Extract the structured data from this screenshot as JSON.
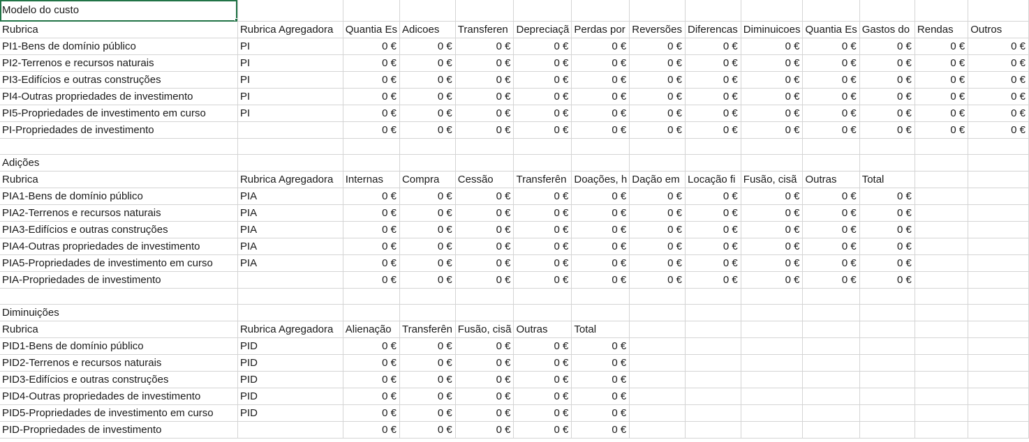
{
  "sheet": {
    "selected_cell_text": "Modelo do custo",
    "sections": [
      {
        "title": "Modelo do custo",
        "headers": [
          "Rubrica",
          "Rubrica Agregadora",
          "Quantia Es",
          "Adicoes",
          "Transferen",
          "Depreciaçã",
          "Perdas por",
          "Reversões",
          "Diferencas",
          "Diminuicoes",
          "Quantia Es",
          "Gastos do",
          "Rendas",
          "Outros"
        ],
        "rows": [
          [
            "PI1-Bens de domínio público",
            "PI",
            "0 €",
            "0 €",
            "0 €",
            "0 €",
            "0 €",
            "0 €",
            "0 €",
            "0 €",
            "0 €",
            "0 €",
            "0 €",
            "0 €"
          ],
          [
            "PI2-Terrenos e recursos naturais",
            "PI",
            "0 €",
            "0 €",
            "0 €",
            "0 €",
            "0 €",
            "0 €",
            "0 €",
            "0 €",
            "0 €",
            "0 €",
            "0 €",
            "0 €"
          ],
          [
            "PI3-Edifícios e outras construções",
            "PI",
            "0 €",
            "0 €",
            "0 €",
            "0 €",
            "0 €",
            "0 €",
            "0 €",
            "0 €",
            "0 €",
            "0 €",
            "0 €",
            "0 €"
          ],
          [
            "PI4-Outras propriedades de investimento",
            "PI",
            "0 €",
            "0 €",
            "0 €",
            "0 €",
            "0 €",
            "0 €",
            "0 €",
            "0 €",
            "0 €",
            "0 €",
            "0 €",
            "0 €"
          ],
          [
            "PI5-Propriedades de investimento em curso",
            "PI",
            "0 €",
            "0 €",
            "0 €",
            "0 €",
            "0 €",
            "0 €",
            "0 €",
            "0 €",
            "0 €",
            "0 €",
            "0 €",
            "0 €"
          ],
          [
            "PI-Propriedades de investimento",
            "",
            "0 €",
            "0 €",
            "0 €",
            "0 €",
            "0 €",
            "0 €",
            "0 €",
            "0 €",
            "0 €",
            "0 €",
            "0 €",
            "0 €"
          ]
        ]
      },
      {
        "title": "Adições",
        "headers": [
          "Rubrica",
          "Rubrica Agregadora",
          "Internas",
          "Compra",
          "Cessão",
          "Transferên",
          "Doações, h",
          "Dação em",
          "Locação fi",
          "Fusão, cisã",
          "Outras",
          "Total"
        ],
        "rows": [
          [
            "PIA1-Bens de domínio público",
            "PIA",
            "0 €",
            "0 €",
            "0 €",
            "0 €",
            "0 €",
            "0 €",
            "0 €",
            "0 €",
            "0 €",
            "0 €"
          ],
          [
            "PIA2-Terrenos e recursos naturais",
            "PIA",
            "0 €",
            "0 €",
            "0 €",
            "0 €",
            "0 €",
            "0 €",
            "0 €",
            "0 €",
            "0 €",
            "0 €"
          ],
          [
            "PIA3-Edifícios e outras construções",
            "PIA",
            "0 €",
            "0 €",
            "0 €",
            "0 €",
            "0 €",
            "0 €",
            "0 €",
            "0 €",
            "0 €",
            "0 €"
          ],
          [
            "PIA4-Outras propriedades de investimento",
            "PIA",
            "0 €",
            "0 €",
            "0 €",
            "0 €",
            "0 €",
            "0 €",
            "0 €",
            "0 €",
            "0 €",
            "0 €"
          ],
          [
            "PIA5-Propriedades de investimento em curso",
            "PIA",
            "0 €",
            "0 €",
            "0 €",
            "0 €",
            "0 €",
            "0 €",
            "0 €",
            "0 €",
            "0 €",
            "0 €"
          ],
          [
            "PIA-Propriedades de investimento",
            "",
            "0 €",
            "0 €",
            "0 €",
            "0 €",
            "0 €",
            "0 €",
            "0 €",
            "0 €",
            "0 €",
            "0 €"
          ]
        ]
      },
      {
        "title": "Diminuições",
        "headers": [
          "Rubrica",
          "Rubrica Agregadora",
          "Alienação",
          "Transferên",
          "Fusão, cisã",
          "Outras",
          "Total"
        ],
        "rows": [
          [
            "PID1-Bens de domínio público",
            "PID",
            "0 €",
            "0 €",
            "0 €",
            "0 €",
            "0 €"
          ],
          [
            "PID2-Terrenos e recursos naturais",
            "PID",
            "0 €",
            "0 €",
            "0 €",
            "0 €",
            "0 €"
          ],
          [
            "PID3-Edifícios e outras construções",
            "PID",
            "0 €",
            "0 €",
            "0 €",
            "0 €",
            "0 €"
          ],
          [
            "PID4-Outras propriedades de investimento",
            "PID",
            "0 €",
            "0 €",
            "0 €",
            "0 €",
            "0 €"
          ],
          [
            "PID5-Propriedades de investimento em curso",
            "PID",
            "0 €",
            "0 €",
            "0 €",
            "0 €",
            "0 €"
          ],
          [
            "PID-Propriedades de investimento",
            "",
            "0 €",
            "0 €",
            "0 €",
            "0 €",
            "0 €"
          ]
        ]
      }
    ]
  }
}
